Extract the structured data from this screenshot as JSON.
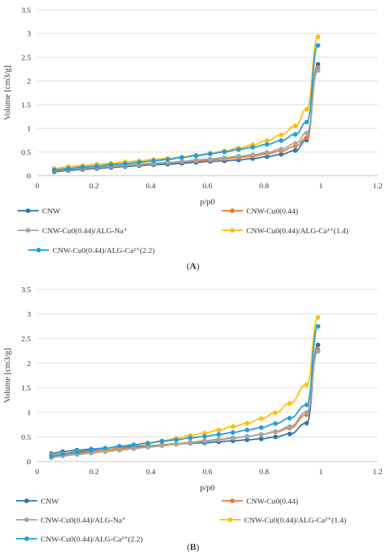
{
  "chart_data": [
    {
      "type": "line",
      "title": "",
      "panel_label": "A",
      "xlabel": "p/p0",
      "ylabel": "Volume [cm3/g]",
      "xlim": [
        0,
        1.2
      ],
      "ylim": [
        0,
        3.5
      ],
      "x_ticks": [
        "0",
        "0.2",
        "0.4",
        "0.6",
        "0.8",
        "1",
        "1.2"
      ],
      "y_ticks": [
        "0",
        "0.5",
        "1",
        "1.5",
        "2",
        "2.5",
        "3",
        "3.5"
      ],
      "grid": "horizontal",
      "legend_position": "bottom",
      "series": [
        {
          "name": "CNW",
          "color": "#2e75b6",
          "x": [
            0.06,
            0.11,
            0.16,
            0.21,
            0.26,
            0.31,
            0.36,
            0.41,
            0.46,
            0.51,
            0.56,
            0.61,
            0.66,
            0.71,
            0.76,
            0.81,
            0.86,
            0.91,
            0.95,
            0.99
          ],
          "y": [
            0.08,
            0.11,
            0.13,
            0.15,
            0.17,
            0.19,
            0.21,
            0.23,
            0.24,
            0.26,
            0.28,
            0.3,
            0.31,
            0.33,
            0.36,
            0.4,
            0.45,
            0.53,
            0.75,
            2.35
          ]
        },
        {
          "name": "CNW-Cu0(0.44)",
          "color": "#ed7d31",
          "x": [
            0.06,
            0.11,
            0.16,
            0.21,
            0.26,
            0.31,
            0.36,
            0.41,
            0.46,
            0.51,
            0.56,
            0.61,
            0.66,
            0.71,
            0.76,
            0.81,
            0.86,
            0.91,
            0.95,
            0.99
          ],
          "y": [
            0.1,
            0.13,
            0.15,
            0.17,
            0.19,
            0.21,
            0.23,
            0.25,
            0.27,
            0.29,
            0.31,
            0.33,
            0.35,
            0.38,
            0.41,
            0.46,
            0.52,
            0.62,
            0.8,
            2.28
          ]
        },
        {
          "name": "CNW-Cu0(0.44)/ALG-Na⁺",
          "color": "#a5a5a5",
          "x": [
            0.06,
            0.11,
            0.16,
            0.21,
            0.26,
            0.31,
            0.36,
            0.41,
            0.46,
            0.51,
            0.56,
            0.61,
            0.66,
            0.71,
            0.76,
            0.81,
            0.86,
            0.91,
            0.95,
            0.99
          ],
          "y": [
            0.11,
            0.14,
            0.16,
            0.18,
            0.2,
            0.22,
            0.24,
            0.26,
            0.28,
            0.3,
            0.33,
            0.35,
            0.38,
            0.41,
            0.44,
            0.49,
            0.56,
            0.68,
            0.9,
            2.22
          ]
        },
        {
          "name": "CNW-Cu0(0.44)/ALG-Ca²⁺(1.4)",
          "color": "#ffc000",
          "x": [
            0.06,
            0.11,
            0.16,
            0.21,
            0.26,
            0.31,
            0.36,
            0.41,
            0.46,
            0.51,
            0.56,
            0.61,
            0.66,
            0.71,
            0.76,
            0.81,
            0.86,
            0.91,
            0.95,
            0.99
          ],
          "y": [
            0.15,
            0.19,
            0.21,
            0.24,
            0.26,
            0.29,
            0.31,
            0.34,
            0.36,
            0.39,
            0.43,
            0.47,
            0.52,
            0.58,
            0.65,
            0.74,
            0.86,
            1.05,
            1.4,
            2.93
          ]
        },
        {
          "name": "CNW-Cu0(0.44)/ALG-Ca²⁺(2.2)",
          "color": "#1f9fdf",
          "x": [
            0.06,
            0.11,
            0.16,
            0.21,
            0.26,
            0.31,
            0.36,
            0.41,
            0.46,
            0.51,
            0.56,
            0.61,
            0.66,
            0.71,
            0.76,
            0.81,
            0.86,
            0.91,
            0.95,
            0.99
          ],
          "y": [
            0.12,
            0.15,
            0.18,
            0.2,
            0.23,
            0.25,
            0.28,
            0.31,
            0.34,
            0.38,
            0.42,
            0.46,
            0.5,
            0.55,
            0.6,
            0.66,
            0.74,
            0.87,
            1.13,
            2.75
          ]
        }
      ]
    },
    {
      "type": "line",
      "title": "",
      "panel_label": "B",
      "xlabel": "p/p0",
      "ylabel": "Volume [cm3/g]",
      "xlim": [
        0,
        1.2
      ],
      "ylim": [
        0,
        3.5
      ],
      "x_ticks": [
        "0",
        "0.2",
        "0.4",
        "0.6",
        "0.8",
        "1",
        "1.2"
      ],
      "y_ticks": [
        "0",
        "0.5",
        "1",
        "1.5",
        "2",
        "2.5",
        "3",
        "3.5"
      ],
      "grid": "horizontal",
      "legend_position": "bottom",
      "series": [
        {
          "name": "CNW",
          "color": "#2e75b6",
          "x": [
            0.05,
            0.09,
            0.14,
            0.19,
            0.24,
            0.29,
            0.34,
            0.39,
            0.44,
            0.49,
            0.54,
            0.59,
            0.64,
            0.69,
            0.74,
            0.79,
            0.84,
            0.89,
            0.95,
            0.99
          ],
          "y": [
            0.16,
            0.2,
            0.23,
            0.25,
            0.27,
            0.29,
            0.31,
            0.32,
            0.33,
            0.35,
            0.37,
            0.38,
            0.4,
            0.42,
            0.44,
            0.46,
            0.5,
            0.56,
            0.78,
            2.37
          ]
        },
        {
          "name": "CNW-Cu0(0.44)",
          "color": "#ed7d31",
          "x": [
            0.05,
            0.09,
            0.14,
            0.19,
            0.24,
            0.29,
            0.34,
            0.39,
            0.44,
            0.49,
            0.54,
            0.59,
            0.64,
            0.69,
            0.74,
            0.79,
            0.84,
            0.89,
            0.95,
            0.99
          ],
          "y": [
            0.11,
            0.14,
            0.17,
            0.2,
            0.23,
            0.26,
            0.29,
            0.31,
            0.34,
            0.36,
            0.39,
            0.42,
            0.45,
            0.48,
            0.51,
            0.55,
            0.6,
            0.68,
            0.95,
            2.28
          ]
        },
        {
          "name": "CNW-Cu0(0.44)/ALG-Na⁺",
          "color": "#a5a5a5",
          "x": [
            0.05,
            0.09,
            0.14,
            0.19,
            0.24,
            0.29,
            0.34,
            0.39,
            0.44,
            0.49,
            0.54,
            0.59,
            0.64,
            0.69,
            0.74,
            0.79,
            0.84,
            0.89,
            0.95,
            0.99
          ],
          "y": [
            0.08,
            0.11,
            0.14,
            0.17,
            0.2,
            0.23,
            0.26,
            0.29,
            0.32,
            0.35,
            0.38,
            0.41,
            0.44,
            0.47,
            0.51,
            0.55,
            0.61,
            0.71,
            1.0,
            2.24
          ]
        },
        {
          "name": "CNW-Cu0(0.44)/ALG-Ca²⁺(1.4)",
          "color": "#ffc000",
          "x": [
            0.05,
            0.09,
            0.14,
            0.19,
            0.24,
            0.29,
            0.34,
            0.39,
            0.44,
            0.49,
            0.54,
            0.59,
            0.64,
            0.69,
            0.74,
            0.79,
            0.84,
            0.89,
            0.95,
            0.99
          ],
          "y": [
            0.13,
            0.16,
            0.2,
            0.23,
            0.26,
            0.3,
            0.34,
            0.38,
            0.42,
            0.47,
            0.53,
            0.58,
            0.64,
            0.71,
            0.78,
            0.87,
            0.99,
            1.18,
            1.56,
            2.93
          ]
        },
        {
          "name": "CNW-Cu0(0.44)/ALG-Ca²⁺(2.2)",
          "color": "#1f9fdf",
          "x": [
            0.05,
            0.09,
            0.14,
            0.19,
            0.24,
            0.29,
            0.34,
            0.39,
            0.44,
            0.49,
            0.54,
            0.59,
            0.64,
            0.69,
            0.74,
            0.79,
            0.84,
            0.89,
            0.95,
            0.99
          ],
          "y": [
            0.11,
            0.15,
            0.19,
            0.23,
            0.27,
            0.31,
            0.34,
            0.37,
            0.41,
            0.44,
            0.48,
            0.51,
            0.55,
            0.59,
            0.64,
            0.69,
            0.77,
            0.88,
            1.15,
            2.75
          ]
        }
      ]
    }
  ]
}
